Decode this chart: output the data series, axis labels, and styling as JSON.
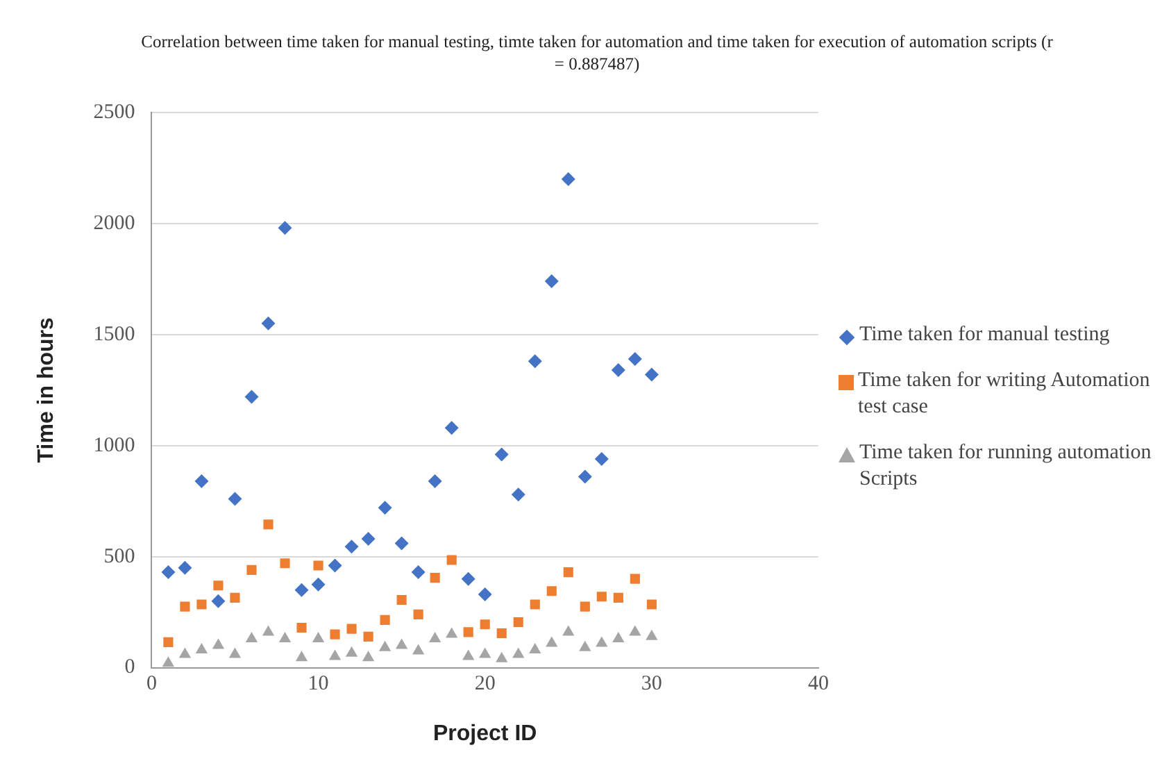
{
  "chart_data": {
    "type": "scatter",
    "title": "Correlation between time taken for manual testing, timte taken for automation and time taken for execution of automation scripts (r = 0.887487)",
    "xlabel": "Project ID",
    "ylabel": "Time in hours",
    "x": [
      1,
      2,
      3,
      4,
      5,
      6,
      7,
      8,
      9,
      10,
      11,
      12,
      13,
      14,
      15,
      16,
      17,
      18,
      19,
      20,
      21,
      22,
      23,
      24,
      25,
      26,
      27,
      28,
      29,
      30
    ],
    "xlim": [
      0,
      40
    ],
    "xticks": [
      0,
      10,
      20,
      30,
      40
    ],
    "ylim": [
      0,
      2500
    ],
    "yticks": [
      0,
      500,
      1000,
      1500,
      2000,
      2500
    ],
    "grid": "y",
    "legend": "right",
    "series": [
      {
        "name": "Time taken for manual testing",
        "color": "#4472c4",
        "marker": "diamond",
        "values": [
          430,
          450,
          840,
          300,
          760,
          1220,
          1550,
          1980,
          350,
          375,
          460,
          545,
          580,
          720,
          560,
          430,
          840,
          1080,
          400,
          330,
          960,
          780,
          1380,
          1740,
          2200,
          860,
          940,
          1340,
          1390,
          1320
        ]
      },
      {
        "name": "Time taken for writing Automation test case",
        "color": "#ed7d31",
        "marker": "square",
        "values": [
          115,
          275,
          285,
          370,
          315,
          440,
          645,
          470,
          180,
          460,
          150,
          175,
          140,
          215,
          305,
          240,
          405,
          485,
          160,
          195,
          155,
          205,
          285,
          345,
          430,
          275,
          320,
          315,
          400,
          285
        ]
      },
      {
        "name": "Time taken for running automation Scripts",
        "color": "#a5a5a5",
        "marker": "triangle",
        "values": [
          20,
          60,
          80,
          100,
          60,
          130,
          160,
          130,
          45,
          130,
          50,
          65,
          45,
          90,
          100,
          75,
          130,
          150,
          50,
          60,
          40,
          60,
          80,
          110,
          160,
          90,
          110,
          130,
          160,
          140
        ]
      }
    ]
  }
}
